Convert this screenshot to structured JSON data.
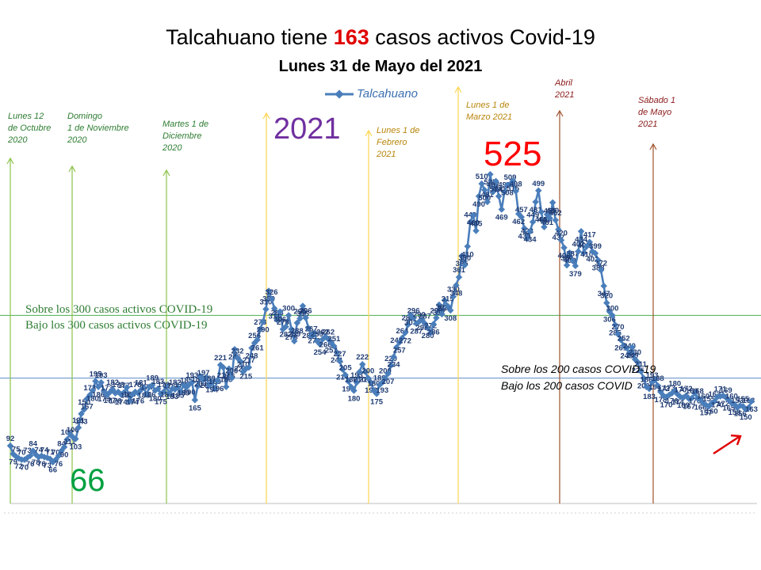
{
  "header": {
    "title_pre": "Talcahuano tiene ",
    "title_num": "163",
    "title_post": " casos activos Covid-19",
    "subtitle": "Lunes 31 de Mayo del 2021"
  },
  "legend": {
    "label": "Talcahuano"
  },
  "highlights": {
    "year": "2021",
    "max": "525",
    "min": "66"
  },
  "thresholds": {
    "t300_above": "Sobre los 300 casos activos COVID-19",
    "t300_below": "Bajo los 300 casos activos COVID-19",
    "t200_above": "Sobre los 200 casos COVID-19",
    "t200_below": "Bajo los 200 casos COVID"
  },
  "annotations": [
    {
      "line1": "Lunes 12",
      "line2": "de Octubre",
      "line3": "2020",
      "color": "#2e7d32"
    },
    {
      "line1": "Domingo",
      "line2": "1 de Noviembre",
      "line3": "2020",
      "color": "#2e7d32"
    },
    {
      "line1": "Martes 1 de",
      "line2": "Diciembre",
      "line3": "2020",
      "color": "#2e7d32"
    },
    {
      "line1": "Lunes 1 de",
      "line2": "Febrero",
      "line3": "2021",
      "color": "#b8860b"
    },
    {
      "line1": "Lunes 1 de",
      "line2": "Marzo 2021",
      "line3": "",
      "color": "#b8860b"
    },
    {
      "line1": "Abril",
      "line2": "2021",
      "line3": "",
      "color": "#8b1a1a"
    },
    {
      "line1": "Sábado 1",
      "line2": "de Mayo",
      "line3": "2021",
      "color": "#8b1a1a"
    }
  ],
  "colors": {
    "series": "#4a7ebb",
    "label": "#1f3b73",
    "line300": "#4caf50",
    "line200": "#5b8bc9",
    "arrow": "#e00000"
  },
  "chart_data": {
    "type": "line",
    "title": "Talcahuano tiene 163 casos activos Covid-19",
    "subtitle": "Lunes 31 de Mayo del 2021",
    "xlabel": "",
    "ylabel": "",
    "ylim": [
      0,
      600
    ],
    "grid": false,
    "legend_position": "top-center",
    "series": [
      {
        "name": "Talcahuano",
        "values": [
          92,
          79,
          75,
          72,
          70,
          70,
          73,
          76,
          84,
          78,
          74,
          76,
          74,
          73,
          71,
          66,
          70,
          76,
          84,
          90,
          102,
          111,
          106,
          103,
          121,
          143,
          150,
          167,
          173,
          180,
          195,
          186,
          193,
          179,
          173,
          177,
          182,
          176,
          178,
          174,
          177,
          185,
          163,
          174,
          178,
          176,
          181,
          185,
          174,
          186,
          189,
          180,
          183,
          175,
          178,
          186,
          176,
          183,
          182,
          185,
          178,
          189,
          185,
          190,
          193,
          165,
          187,
          203,
          197,
          201,
          188,
          194,
          183,
          196,
          221,
          217,
          186,
          215,
          200,
          246,
          232,
          227,
          210,
          215,
          217,
          248,
          256,
          261,
          278,
          290,
          310,
          339,
          326,
          311,
          293,
          306,
          278,
          282,
          300,
          278,
          259,
          288,
          295,
          315,
          296,
          280,
          267,
          272,
          259,
          254,
          262,
          266,
          262,
          257,
          251,
          241,
          227,
          214,
          205,
          195,
          186,
          180,
          193,
          210,
          222,
          210,
          200,
          193,
          180,
          175,
          189,
          193,
          200,
          207,
          220,
          234,
          249,
          257,
          264,
          272,
          285,
          301,
          296,
          287,
          290,
          293,
          287,
          280,
          272,
          286,
          296,
          317,
          302,
          324,
          315,
          308,
          330,
          348,
          361,
          395,
          380,
          410,
          449,
          460,
          435,
          490,
          510,
          500,
          481,
          525,
          497,
          514,
          490,
          469,
          497,
          508,
          509,
          515,
          498,
          462,
          457,
          439,
          423,
          434,
          449,
          481,
          499,
          465,
          441,
          461,
          455,
          480,
          452,
          437,
          420,
          408,
          380,
          400,
          387,
          379,
          402,
          434,
          400,
          410,
          417,
          402,
          399,
          388,
          372,
          347,
          320,
          306,
          300,
          285,
          270,
          261,
          252,
          248,
          240,
          249,
          230,
          225,
          211,
          200,
          186,
          183,
          193,
          198,
          188,
          178,
          172,
          170,
          173,
          176,
          180,
          174,
          170,
          169,
          172,
          167,
          168,
          176,
          168,
          166,
          160,
          157,
          155,
          160,
          163,
          170,
          171,
          172,
          169,
          165,
          160,
          158,
          153,
          156,
          155,
          150,
          153,
          163
        ]
      }
    ]
  }
}
